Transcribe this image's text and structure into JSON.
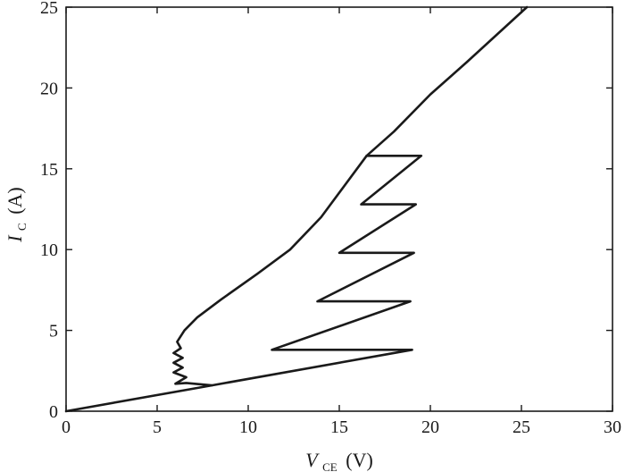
{
  "chart_data": {
    "type": "line",
    "xlabel": {
      "main": "V",
      "sub": "CE",
      "unit": "(V)"
    },
    "ylabel": {
      "main": "I",
      "sub": "C",
      "unit": "(A)"
    },
    "xlim": [
      0,
      30
    ],
    "ylim": [
      0,
      25
    ],
    "xticks": [
      0,
      5,
      10,
      15,
      20,
      25,
      30
    ],
    "yticks": [
      0,
      5,
      10,
      15,
      20,
      25
    ],
    "x_tick_labels": [
      "0",
      "5",
      "10",
      "15",
      "20",
      "25",
      "30"
    ],
    "y_tick_labels": [
      "0",
      "5",
      "10",
      "15",
      "20",
      "25"
    ],
    "grid": false,
    "series": [
      {
        "points": [
          [
            0,
            0
          ],
          [
            8.0,
            1.6
          ],
          [
            19.0,
            3.8
          ],
          [
            11.3,
            3.8
          ],
          [
            18.9,
            6.8
          ],
          [
            13.8,
            6.8
          ],
          [
            19.1,
            9.8
          ],
          [
            15.0,
            9.8
          ],
          [
            19.2,
            12.8
          ],
          [
            16.2,
            12.8
          ],
          [
            19.5,
            15.8
          ],
          [
            16.5,
            15.8
          ]
        ]
      },
      {
        "points": [
          [
            8.0,
            1.6
          ],
          [
            6.6,
            1.75
          ],
          [
            6.0,
            1.7
          ],
          [
            6.6,
            2.1
          ],
          [
            5.9,
            2.4
          ],
          [
            6.4,
            2.7
          ],
          [
            5.9,
            3.0
          ],
          [
            6.4,
            3.3
          ],
          [
            5.9,
            3.6
          ],
          [
            6.3,
            3.9
          ],
          [
            6.1,
            4.3
          ],
          [
            6.5,
            5.0
          ],
          [
            7.2,
            5.8
          ],
          [
            8.5,
            6.9
          ],
          [
            10.5,
            8.5
          ],
          [
            12.3,
            10.0
          ],
          [
            14.0,
            12.0
          ],
          [
            16.5,
            15.8
          ],
          [
            18.0,
            17.3
          ],
          [
            20.0,
            19.6
          ],
          [
            22.0,
            21.6
          ],
          [
            25.3,
            25.0
          ]
        ]
      }
    ]
  }
}
